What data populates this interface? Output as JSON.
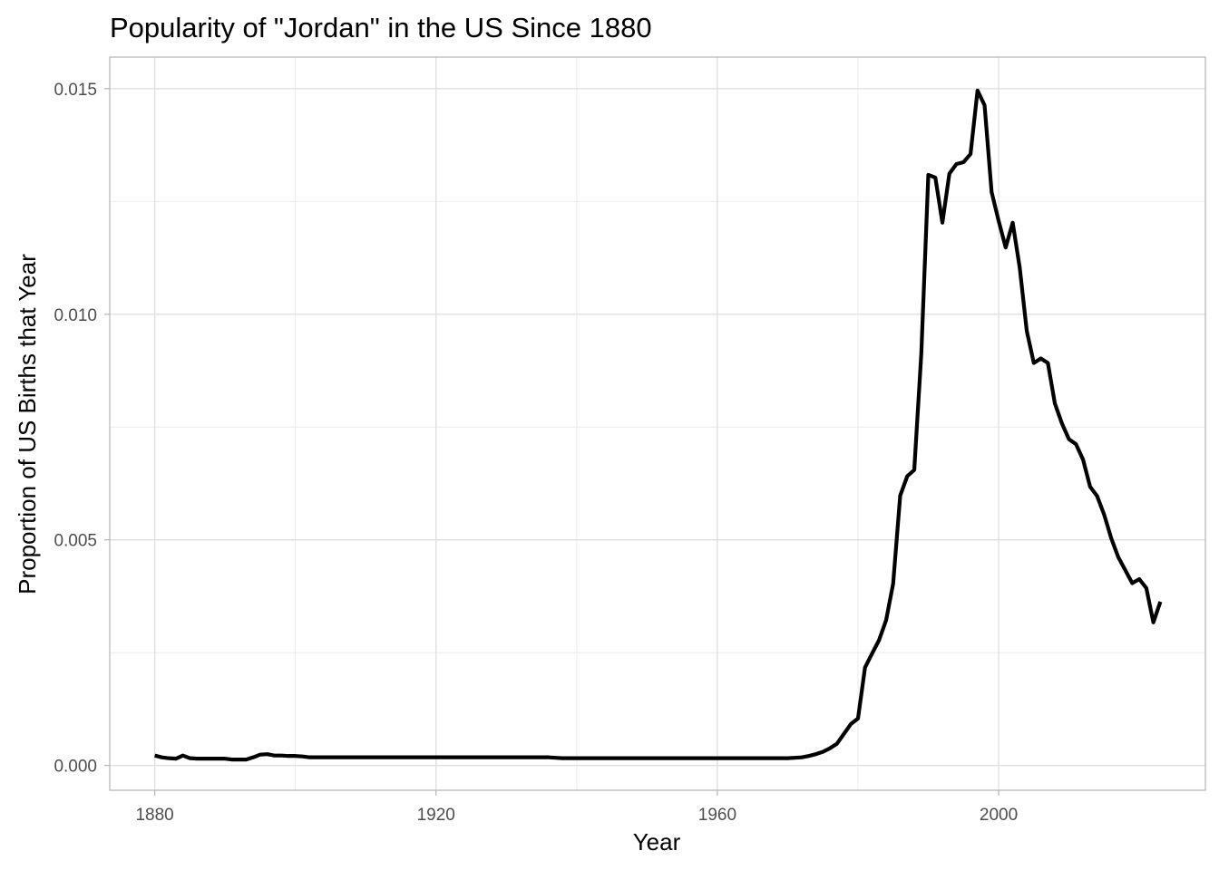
{
  "chart_data": {
    "type": "line",
    "title": "Popularity of \"Jordan\" in the US Since 1880",
    "xlabel": "Year",
    "ylabel": "Proportion of US Births that Year",
    "xlim": [
      1876.4,
      1893.0
    ],
    "ylim": [
      -0.00055,
      0.0157
    ],
    "x_ticks": [
      1880,
      1920,
      1960,
      2000
    ],
    "x_tick_labels": [
      "1880",
      "1920",
      "1960",
      "2000"
    ],
    "y_ticks": [
      0.0,
      0.005,
      0.01,
      0.015
    ],
    "y_tick_labels": [
      "0.000",
      "0.005",
      "0.010",
      "0.015"
    ],
    "grid": true,
    "line_color": "#000000",
    "series": [
      {
        "x": [
          1880,
          1881,
          1882,
          1883,
          1884,
          1885,
          1886,
          1887,
          1888,
          1889,
          1890,
          1891,
          1892,
          1893,
          1894,
          1895,
          1896,
          1897,
          1898,
          1899,
          1900,
          1901,
          1902,
          1903,
          1904,
          1905,
          1906,
          1907,
          1908,
          1909,
          1910,
          1911,
          1912,
          1913,
          1914,
          1915,
          1916,
          1917,
          1918,
          1919,
          1920,
          1921,
          1922,
          1923,
          1924,
          1925,
          1926,
          1927,
          1928,
          1929,
          1930,
          1931,
          1932,
          1933,
          1934,
          1935,
          1936,
          1937,
          1938,
          1939,
          1940,
          1941,
          1942,
          1943,
          1944,
          1945,
          1946,
          1947,
          1948,
          1949,
          1950,
          1951,
          1952,
          1953,
          1954,
          1955,
          1956,
          1957,
          1958,
          1959,
          1960,
          1961,
          1962,
          1963,
          1964,
          1965,
          1966,
          1967,
          1968,
          1969,
          1970,
          1971,
          1972,
          1973,
          1974,
          1975,
          1976,
          1977,
          1978,
          1979,
          1980,
          1981,
          1982,
          1983,
          1984,
          1985,
          1986,
          1987,
          1988,
          1989,
          1990,
          1991,
          1992,
          1993,
          1994,
          1995,
          1996,
          1997,
          1998,
          1999,
          2000,
          2001,
          2002,
          2003,
          2004,
          2005,
          2006,
          2007,
          2008,
          2009,
          2010,
          2011,
          2012,
          2013,
          2014,
          2015,
          2016,
          2017,
          2018,
          2019,
          2020,
          2021,
          2022,
          2023
        ],
        "y": [
          0.00022,
          0.00018,
          0.00016,
          0.00015,
          0.00022,
          0.00016,
          0.00015,
          0.00015,
          0.00015,
          0.00015,
          0.00015,
          0.00013,
          0.00013,
          0.00013,
          0.00018,
          0.00024,
          0.00025,
          0.00022,
          0.00022,
          0.00021,
          0.00021,
          0.0002,
          0.00018,
          0.00018,
          0.00018,
          0.00018,
          0.00018,
          0.00018,
          0.00018,
          0.00018,
          0.00018,
          0.00018,
          0.00018,
          0.00018,
          0.00018,
          0.00018,
          0.00018,
          0.00018,
          0.00018,
          0.00018,
          0.00018,
          0.00018,
          0.00018,
          0.00018,
          0.00018,
          0.00018,
          0.00018,
          0.00018,
          0.00018,
          0.00018,
          0.00018,
          0.00018,
          0.00018,
          0.00018,
          0.00018,
          0.00018,
          0.00018,
          0.00017,
          0.00016,
          0.00016,
          0.00016,
          0.00016,
          0.00016,
          0.00016,
          0.00016,
          0.00016,
          0.00016,
          0.00016,
          0.00016,
          0.00016,
          0.00016,
          0.00016,
          0.00016,
          0.00016,
          0.00016,
          0.00016,
          0.00016,
          0.00016,
          0.00016,
          0.00016,
          0.00016,
          0.00016,
          0.00016,
          0.00016,
          0.00016,
          0.00016,
          0.00016,
          0.00016,
          0.00016,
          0.00016,
          0.00016,
          0.00017,
          0.00018,
          0.00021,
          0.00025,
          0.0003,
          0.00038,
          0.00048,
          0.0007,
          0.00092,
          0.00104,
          0.00217,
          0.00248,
          0.00278,
          0.00322,
          0.00403,
          0.00598,
          0.00641,
          0.00655,
          0.00912,
          0.01309,
          0.01303,
          0.01203,
          0.01312,
          0.01333,
          0.01337,
          0.01355,
          0.01496,
          0.01463,
          0.01271,
          0.01207,
          0.01148,
          0.01203,
          0.01103,
          0.00963,
          0.00892,
          0.00902,
          0.00892,
          0.00802,
          0.00758,
          0.00723,
          0.00712,
          0.00678,
          0.00618,
          0.00597,
          0.00556,
          0.00504,
          0.00462,
          0.00433,
          0.00404,
          0.00413,
          0.00393,
          0.00317,
          0.00363
        ]
      }
    ]
  }
}
